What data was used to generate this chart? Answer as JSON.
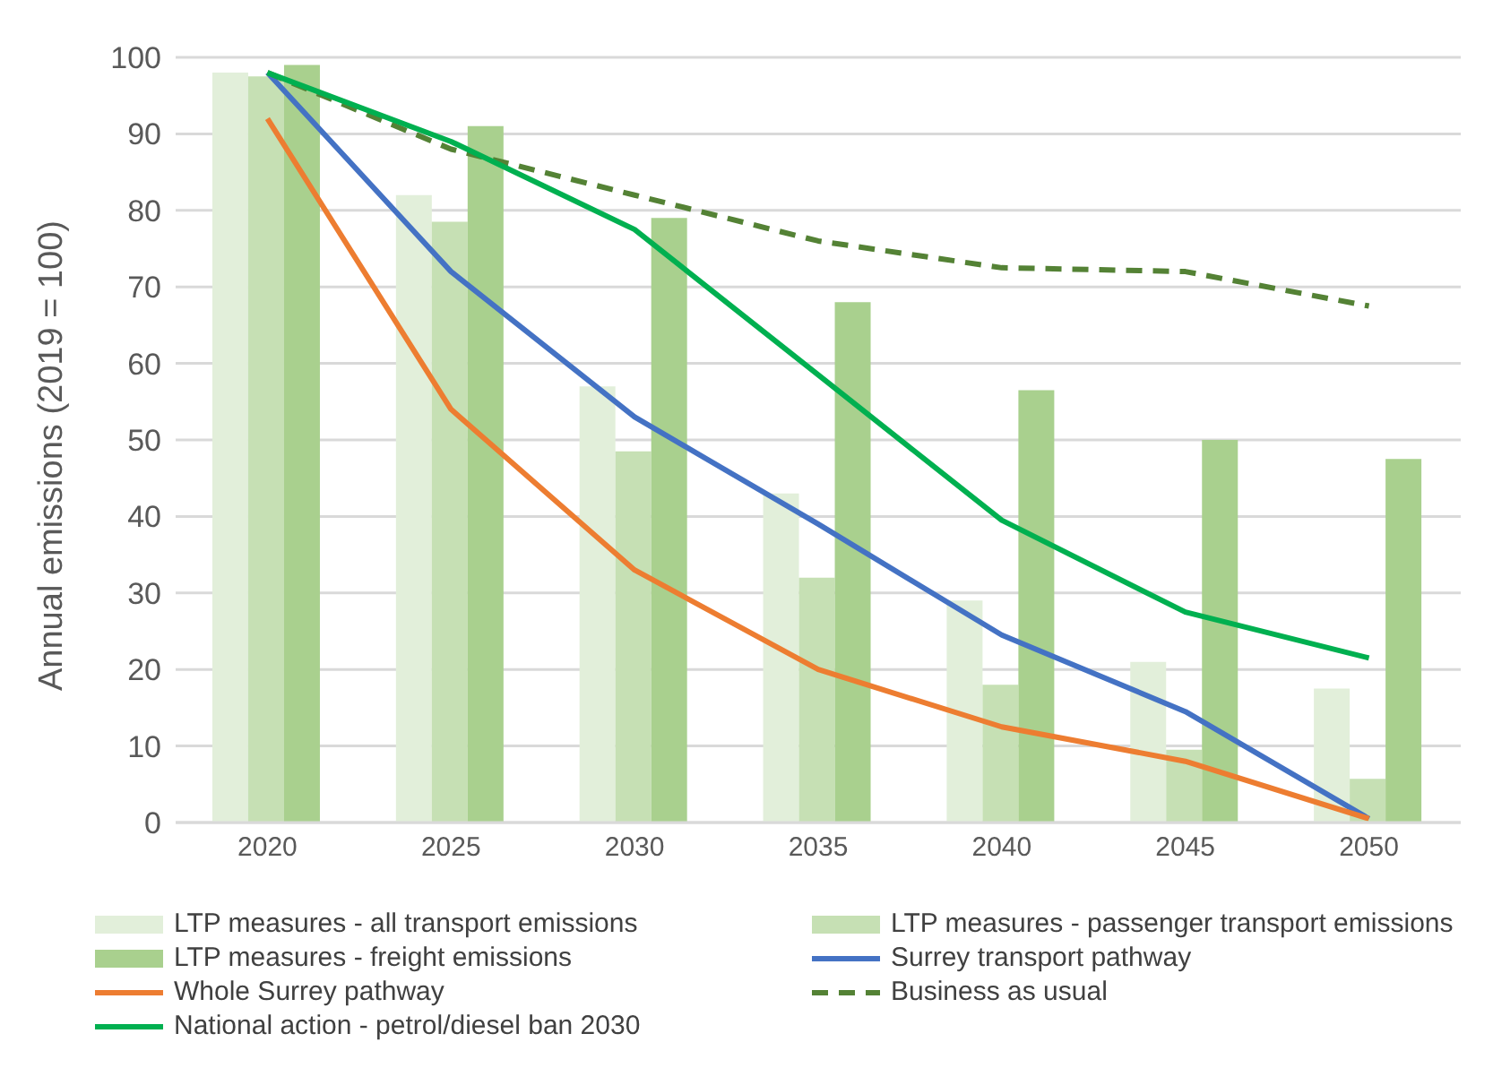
{
  "chart_data": {
    "type": "bar",
    "ylabel": "Annual emissions (2019 = 100)",
    "categories": [
      "2020",
      "2025",
      "2030",
      "2035",
      "2040",
      "2045",
      "2050"
    ],
    "ylim": [
      0,
      100
    ],
    "yticks": [
      0,
      10,
      20,
      30,
      40,
      50,
      60,
      70,
      80,
      90,
      100
    ],
    "grid": "y",
    "legend": "bottom",
    "marker": "none",
    "series": [
      {
        "name": "LTP measures - all transport emissions",
        "color": "#e2efda",
        "values": [
          98,
          82,
          57,
          43,
          29,
          21,
          17.5
        ]
      },
      {
        "name": "LTP measures - passenger transport emissions",
        "color": "#c6e0b4",
        "values": [
          97.5,
          78.5,
          48.5,
          32,
          18,
          9.5,
          5.7
        ]
      },
      {
        "name": "LTP measures -  freight emissions",
        "color": "#a9d08e",
        "values": [
          99,
          91,
          79,
          68,
          56.5,
          50,
          47.5
        ]
      },
      {
        "name": "Surrey transport pathway",
        "type": "line",
        "color": "#4472c4",
        "line_style": "solid",
        "values": [
          98,
          72,
          53,
          39,
          24.5,
          14.5,
          0.5
        ]
      },
      {
        "name": "Whole Surrey pathway",
        "type": "line",
        "color": "#ed7d31",
        "line_style": "solid",
        "values": [
          92,
          54,
          33,
          20,
          12.5,
          8,
          0.5
        ]
      },
      {
        "name": "Business as usual",
        "type": "line",
        "color": "#548235",
        "line_style": "dashed",
        "values": [
          98,
          88,
          82,
          76,
          72.5,
          72,
          67.5
        ]
      },
      {
        "name": "National action - petrol/diesel ban 2030",
        "type": "line",
        "color": "#00b050",
        "line_style": "solid",
        "values": [
          98,
          89,
          77.5,
          58.5,
          39.5,
          27.5,
          21.5
        ]
      }
    ]
  }
}
